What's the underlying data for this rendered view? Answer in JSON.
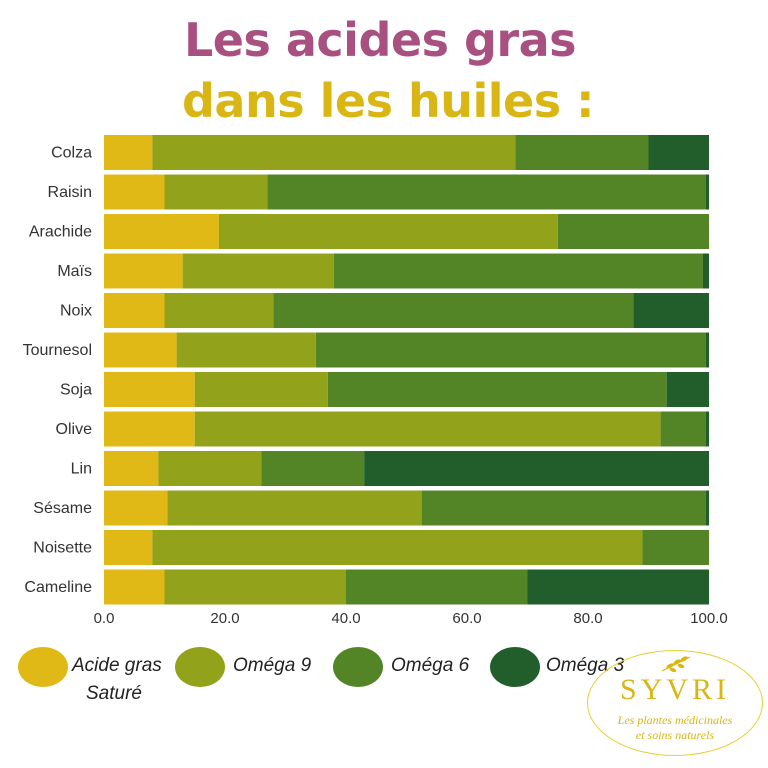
{
  "title": {
    "line1": "Les acides gras",
    "line2": "dans les huiles :"
  },
  "colors": {
    "title_line1": "#a8507f",
    "title_line2": "#d9b614",
    "Acide gras Saturé": "#e0b917",
    "Oméga 9": "#92a31b",
    "Oméga 6": "#538527",
    "Oméga 3": "#215e2c",
    "logo": "#d9b614"
  },
  "chart_data": {
    "type": "bar",
    "orientation": "horizontal",
    "stacked": true,
    "title": "",
    "xlabel": "",
    "ylabel": "",
    "xlim": [
      0,
      100
    ],
    "x_ticks": [
      "0.0",
      "20.0",
      "40.0",
      "60.0",
      "80.0",
      "100.0"
    ],
    "grid": false,
    "legend_position": "bottom",
    "categories": [
      "Colza",
      "Raisin",
      "Arachide",
      "Maïs",
      "Noix",
      "Tournesol",
      "Soja",
      "Olive",
      "Lin",
      "Sésame",
      "Noisette",
      "Cameline"
    ],
    "series": [
      {
        "name": "Acide gras Saturé",
        "values": [
          8,
          10,
          19,
          13,
          10,
          12,
          15,
          15,
          9,
          10.5,
          8,
          10
        ]
      },
      {
        "name": "Oméga 9",
        "values": [
          60,
          17,
          56,
          25,
          18,
          23,
          22,
          77,
          17,
          42,
          81,
          30
        ]
      },
      {
        "name": "Oméga 6",
        "values": [
          22,
          72.5,
          25,
          61,
          59.5,
          64.5,
          56,
          7.5,
          17,
          47,
          11,
          30
        ]
      },
      {
        "name": "Oméga 3",
        "values": [
          10,
          0.5,
          0,
          1,
          12.5,
          0.5,
          7,
          0.5,
          57,
          0.5,
          0,
          30
        ]
      }
    ]
  },
  "legend": [
    {
      "line1": "Acide gras",
      "line2": "Saturé"
    },
    {
      "line1": "Oméga 9",
      "line2": ""
    },
    {
      "line1": "Oméga 6",
      "line2": ""
    },
    {
      "line1": "Oméga 3",
      "line2": ""
    }
  ],
  "logo": {
    "name": "SYVRI",
    "tagline_line1": "Les plantes médicinales",
    "tagline_line2": "et soins naturels",
    "icon": "plant-sprig-icon"
  }
}
